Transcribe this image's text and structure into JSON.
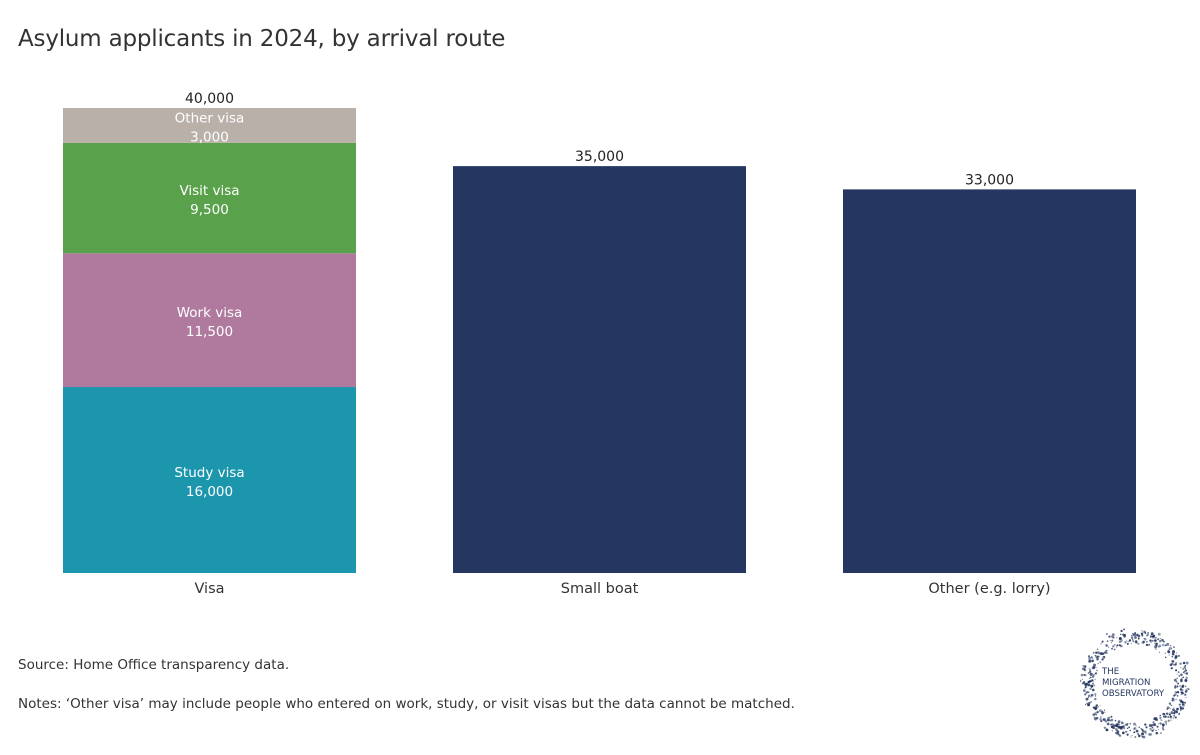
{
  "chart_data": {
    "type": "bar",
    "stacked": true,
    "title": "Asylum applicants in 2024, by arrival route",
    "xlabel": "",
    "ylabel": "",
    "ylim": [
      0,
      40000
    ],
    "grid": false,
    "categories": [
      "Visa",
      "Small boat",
      "Other (e.g. lorry)"
    ],
    "totals": [
      {
        "category": "Visa",
        "value": 40000,
        "label": "40,000"
      },
      {
        "category": "Small boat",
        "value": 35000,
        "label": "35,000"
      },
      {
        "category": "Other (e.g. lorry)",
        "value": 33000,
        "label": "33,000"
      }
    ],
    "series": [
      {
        "name": "Study visa",
        "category": "Visa",
        "value": 16000,
        "label": "16,000",
        "color": "#1b96ad"
      },
      {
        "name": "Work visa",
        "category": "Visa",
        "value": 11500,
        "label": "11,500",
        "color": "#b07a9e"
      },
      {
        "name": "Visit visa",
        "category": "Visa",
        "value": 9500,
        "label": "9,500",
        "color": "#5aa14c"
      },
      {
        "name": "Other visa",
        "category": "Visa",
        "value": 3000,
        "label": "3,000",
        "color": "#b9b0aa"
      },
      {
        "name": "Small boat",
        "category": "Small boat",
        "value": 35000,
        "label": "",
        "color": "#253660"
      },
      {
        "name": "Other (e.g. lorry)",
        "category": "Other (e.g. lorry)",
        "value": 33000,
        "label": "",
        "color": "#253660"
      }
    ]
  },
  "footer": {
    "source": "Source: Home Office transparency data.",
    "notes": "Notes: ‘Other visa’ may include people who entered on work, study, or visit visas but the data cannot be matched."
  },
  "logo": {
    "line1": "THE",
    "line2": "MIGRATION",
    "line3": "OBSERVATORY",
    "color": "#253660"
  }
}
